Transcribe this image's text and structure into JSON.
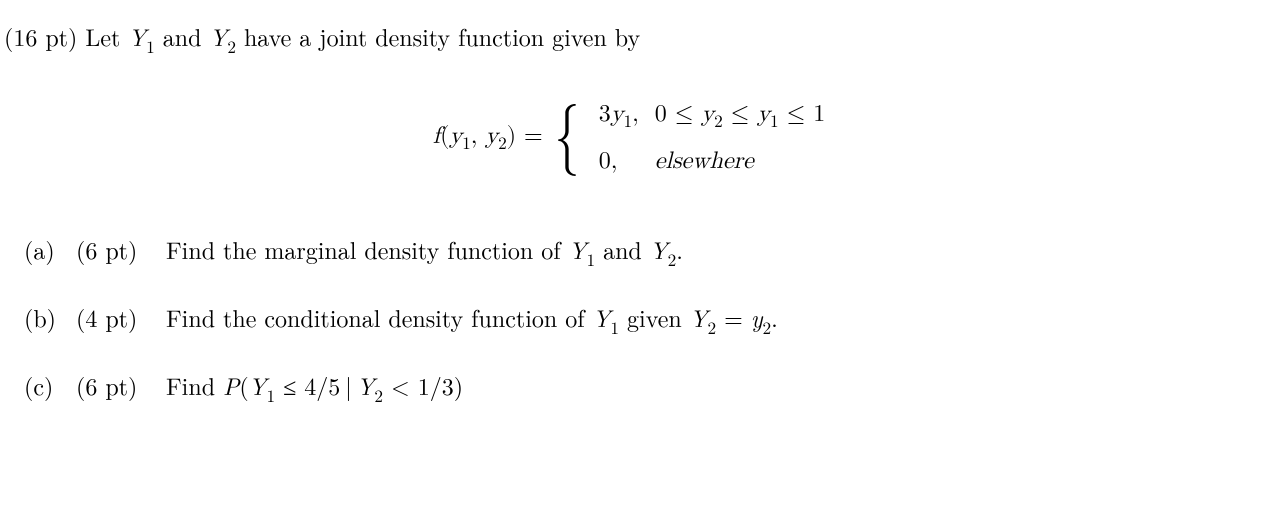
{
  "problem": {
    "points_prefix": "(16 pt) ",
    "intro_html": "Let <span class=\"italic\">Y</span><span class=\"sub\">1</span> and <span class=\"italic\">Y</span><span class=\"sub\">2</span> have a joint density function given by"
  },
  "formula": {
    "lhs_html": "<span class=\"italic\">f</span>(<span class=\"italic\">y</span><span class=\"sub\">1</span>, <span class=\"italic\">y</span><span class=\"sub\">2</span>) = ",
    "case1_val_html": "3<span class=\"italic\">y</span><span class=\"sub\">1</span>,",
    "case1_cond_html": "0 ≤ <span class=\"italic\">y</span><span class=\"sub\">2</span> ≤ <span class=\"italic\">y</span><span class=\"sub\">1</span> ≤ 1",
    "case2_val_html": "0,",
    "case2_cond_html": "<span class=\"italic\">elsewhere</span>"
  },
  "parts": {
    "a": {
      "label": "(a)",
      "points": "(6 pt)",
      "text_html": "Find the marginal density function of <span class=\"italic\">Y</span><span class=\"sub\">1</span> and <span class=\"italic\">Y</span><span class=\"sub\">2</span>."
    },
    "b": {
      "label": "(b)",
      "points": "(4 pt)",
      "text_html": "Find the conditional density function of <span class=\"italic\">Y</span><span class=\"sub\">1</span> given <span class=\"italic\">Y</span><span class=\"sub\">2</span> = <span class=\"italic\">y</span><span class=\"sub\">2</span>."
    },
    "c": {
      "label": "(c)",
      "points": "(6 pt)",
      "text_html": "Find <span class=\"italic\">P</span>(<span class=\"italic\">Y</span><span class=\"sub\">1</span> ≤ 4/5&thinsp;|&thinsp;<span class=\"italic\">Y</span><span class=\"sub\">2</span> &lt; 1/3)"
    }
  }
}
